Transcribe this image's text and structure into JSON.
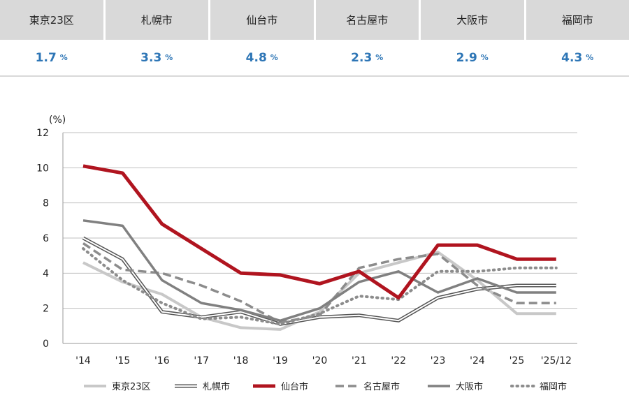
{
  "summary": [
    {
      "city": "東京23区",
      "value": "1.7",
      "unit": "%"
    },
    {
      "city": "札幌市",
      "value": "3.3",
      "unit": "%"
    },
    {
      "city": "仙台市",
      "value": "4.8",
      "unit": "%"
    },
    {
      "city": "名古屋市",
      "value": "2.3",
      "unit": "%"
    },
    {
      "city": "大阪市",
      "value": "2.9",
      "unit": "%"
    },
    {
      "city": "福岡市",
      "value": "4.3",
      "unit": "%"
    }
  ],
  "colors": {
    "summary_value": "#2e76b6",
    "header_bg": "#d9d9d9",
    "grid": "#bfbfbf"
  },
  "chart_data": {
    "type": "line",
    "title": "",
    "ylabel": "(%)",
    "xlabel": "",
    "x": [
      "'14",
      "'15",
      "'16",
      "'17",
      "'18",
      "'19",
      "'20",
      "'21",
      "'22",
      "'23",
      "'24",
      "'25",
      "'25/12"
    ],
    "ylim": [
      0,
      12
    ],
    "yticks": [
      0,
      2,
      4,
      6,
      8,
      10,
      12
    ],
    "grid": "horizontal",
    "legend_position": "bottom",
    "series": [
      {
        "name": "東京23区",
        "style": "solid-thick",
        "color": "#c8c8c8",
        "values": [
          4.6,
          3.5,
          2.8,
          1.5,
          0.9,
          0.8,
          1.8,
          4.0,
          4.6,
          5.2,
          3.6,
          1.7,
          1.7
        ]
      },
      {
        "name": "札幌市",
        "style": "double-line",
        "color": "#555555",
        "values": [
          6.0,
          4.8,
          1.8,
          1.5,
          1.8,
          1.1,
          1.5,
          1.6,
          1.3,
          2.6,
          3.1,
          3.3,
          3.3
        ]
      },
      {
        "name": "仙台市",
        "style": "solid-bold",
        "color": "#b0141f",
        "values": [
          10.1,
          9.7,
          6.8,
          5.4,
          4.0,
          3.9,
          3.4,
          4.1,
          2.6,
          5.6,
          5.6,
          4.8,
          4.8
        ]
      },
      {
        "name": "名古屋市",
        "style": "dashed",
        "color": "#8c8c8c",
        "values": [
          5.7,
          4.2,
          4.0,
          3.3,
          2.4,
          1.2,
          1.6,
          4.3,
          4.8,
          5.1,
          3.3,
          2.3,
          2.3
        ]
      },
      {
        "name": "大阪市",
        "style": "solid",
        "color": "#808080",
        "values": [
          7.0,
          6.7,
          3.6,
          2.3,
          1.9,
          1.3,
          2.0,
          3.5,
          4.1,
          2.9,
          3.7,
          2.9,
          2.9
        ]
      },
      {
        "name": "福岡市",
        "style": "dotted",
        "color": "#8c8c8c",
        "values": [
          5.4,
          3.6,
          2.3,
          1.4,
          1.5,
          1.1,
          1.7,
          2.7,
          2.5,
          4.1,
          4.1,
          4.3,
          4.3
        ]
      }
    ]
  }
}
